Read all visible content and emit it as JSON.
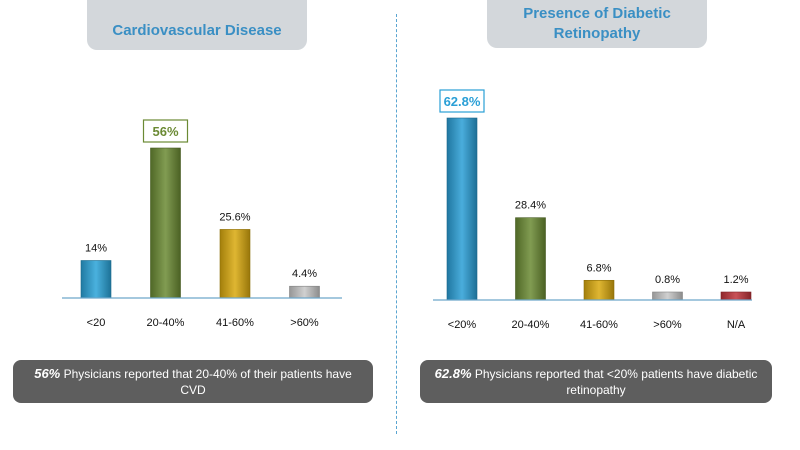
{
  "chart_data": [
    {
      "type": "bar",
      "title": "Cardiovascular Disease",
      "categories": [
        "<20",
        "20-40%",
        "41-60%",
        ">60%"
      ],
      "values": [
        14,
        56,
        25.6,
        4.4
      ],
      "value_labels": [
        "14%",
        "56%",
        "25.6%",
        "4.4%"
      ],
      "highlight_index": 1,
      "bar_colors": [
        "#2aa3d8",
        "#6b8a34",
        "#d9a90e",
        "#c8c8c8"
      ],
      "highlight_color": "#6b8a34",
      "ylim": [
        0,
        56
      ],
      "caption_bold": "56%",
      "caption_text": " Physicians reported that 20-40% of their patients have CVD"
    },
    {
      "type": "bar",
      "title": "Presence of Diabetic Retinopathy",
      "categories": [
        "<20%",
        "20-40%",
        "41-60%",
        ">60%",
        "N/A"
      ],
      "values": [
        62.8,
        28.4,
        6.8,
        0.8,
        1.2
      ],
      "value_labels": [
        "62.8%",
        "28.4%",
        "6.8%",
        "0.8%",
        "1.2%"
      ],
      "highlight_index": 0,
      "bar_colors": [
        "#2a9fd6",
        "#6b8a34",
        "#d9a90e",
        "#c8c8c8",
        "#c0343a"
      ],
      "highlight_color": "#2a9fd6",
      "ylim": [
        0,
        62.8
      ],
      "caption_bold": "62.8%",
      "caption_text": " Physicians reported that <20% patients have diabetic retinopathy"
    }
  ]
}
